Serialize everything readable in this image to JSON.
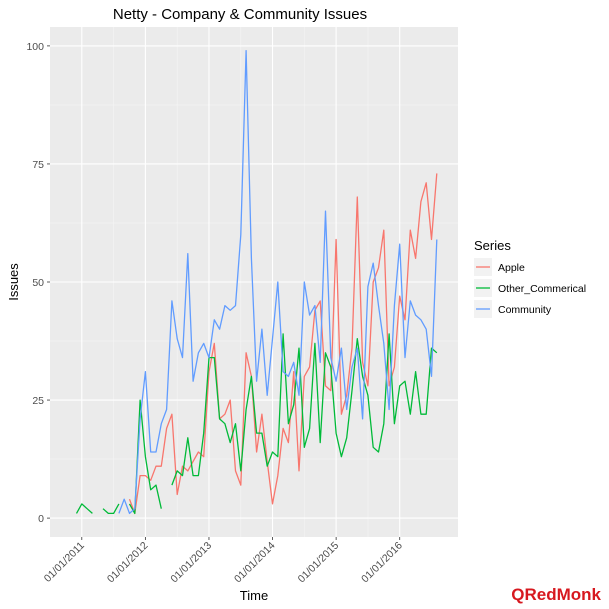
{
  "chart_data": {
    "type": "line",
    "title": "Netty - Company & Community Issues",
    "xlabel": "Time",
    "ylabel": "Issues",
    "ylim": [
      -4,
      104
    ],
    "y_ticks": [
      0,
      25,
      50,
      75,
      100
    ],
    "x_ticks": [
      "01/01/2011",
      "01/01/2012",
      "01/01/2013",
      "01/01/2014",
      "01/01/2015",
      "01/01/2016"
    ],
    "xlim": [
      "2010-07",
      "2016-12"
    ],
    "grid": true,
    "legend": {
      "title": "Series",
      "placement": "right"
    },
    "series": [
      {
        "name": "Apple",
        "color": "#f8766d",
        "values": [
          [
            "2011-10",
            4
          ],
          [
            "2011-11",
            1
          ],
          [
            "2011-12",
            9
          ],
          [
            "2012-01",
            9
          ],
          [
            "2012-02",
            8
          ],
          [
            "2012-03",
            11
          ],
          [
            "2012-04",
            11
          ],
          [
            "2012-05",
            19
          ],
          [
            "2012-06",
            22
          ],
          [
            "2012-07",
            5
          ],
          [
            "2012-08",
            11
          ],
          [
            "2012-09",
            10
          ],
          [
            "2012-10",
            12
          ],
          [
            "2012-11",
            14
          ],
          [
            "2012-12",
            13
          ],
          [
            "2013-01",
            31
          ],
          [
            "2013-02",
            37
          ],
          [
            "2013-03",
            21
          ],
          [
            "2013-04",
            22
          ],
          [
            "2013-05",
            25
          ],
          [
            "2013-06",
            10
          ],
          [
            "2013-07",
            7
          ],
          [
            "2013-08",
            35
          ],
          [
            "2013-09",
            30
          ],
          [
            "2013-10",
            14
          ],
          [
            "2013-11",
            22
          ],
          [
            "2013-12",
            12
          ],
          [
            "2014-01",
            3
          ],
          [
            "2014-02",
            9
          ],
          [
            "2014-03",
            19
          ],
          [
            "2014-04",
            16
          ],
          [
            "2014-05",
            31
          ],
          [
            "2014-06",
            10
          ],
          [
            "2014-07",
            30
          ],
          [
            "2014-08",
            32
          ],
          [
            "2014-09",
            44
          ],
          [
            "2014-10",
            46
          ],
          [
            "2014-11",
            28
          ],
          [
            "2014-12",
            27
          ],
          [
            "2015-01",
            59
          ],
          [
            "2015-02",
            22
          ],
          [
            "2015-03",
            26
          ],
          [
            "2015-04",
            36
          ],
          [
            "2015-05",
            68
          ],
          [
            "2015-06",
            33
          ],
          [
            "2015-07",
            28
          ],
          [
            "2015-08",
            50
          ],
          [
            "2015-09",
            53
          ],
          [
            "2015-10",
            61
          ],
          [
            "2015-11",
            28
          ],
          [
            "2015-12",
            32
          ],
          [
            "2016-01",
            47
          ],
          [
            "2016-02",
            42
          ],
          [
            "2016-03",
            61
          ],
          [
            "2016-04",
            55
          ],
          [
            "2016-05",
            67
          ],
          [
            "2016-06",
            71
          ],
          [
            "2016-07",
            59
          ],
          [
            "2016-08",
            73
          ]
        ]
      },
      {
        "name": "Other_Commerical",
        "color": "#00ba38",
        "values": [
          [
            "2010-12",
            1
          ],
          [
            "2011-01",
            3
          ],
          [
            "2011-02",
            2
          ],
          [
            "2011-03",
            1
          ],
          null,
          [
            "2011-05",
            2
          ],
          [
            "2011-06",
            1
          ],
          [
            "2011-07",
            1
          ],
          [
            "2011-08",
            3
          ],
          null,
          [
            "2011-10",
            3
          ],
          [
            "2011-11",
            1
          ],
          [
            "2011-12",
            25
          ],
          [
            "2012-01",
            13
          ],
          [
            "2012-02",
            6
          ],
          [
            "2012-03",
            7
          ],
          [
            "2012-04",
            2
          ],
          null,
          [
            "2012-06",
            7
          ],
          [
            "2012-07",
            10
          ],
          [
            "2012-08",
            9
          ],
          [
            "2012-09",
            17
          ],
          [
            "2012-10",
            9
          ],
          [
            "2012-11",
            9
          ],
          [
            "2012-12",
            18
          ],
          [
            "2013-01",
            34
          ],
          [
            "2013-02",
            34
          ],
          [
            "2013-03",
            21
          ],
          [
            "2013-04",
            20
          ],
          [
            "2013-05",
            16
          ],
          [
            "2013-06",
            20
          ],
          [
            "2013-07",
            10
          ],
          [
            "2013-08",
            23
          ],
          [
            "2013-09",
            30
          ],
          [
            "2013-10",
            18
          ],
          [
            "2013-11",
            18
          ],
          [
            "2013-12",
            11
          ],
          [
            "2014-01",
            14
          ],
          [
            "2014-02",
            13
          ],
          [
            "2014-03",
            39
          ],
          [
            "2014-04",
            20
          ],
          [
            "2014-05",
            24
          ],
          [
            "2014-06",
            36
          ],
          [
            "2014-07",
            15
          ],
          [
            "2014-08",
            19
          ],
          [
            "2014-09",
            37
          ],
          [
            "2014-10",
            16
          ],
          [
            "2014-11",
            35
          ],
          [
            "2014-12",
            32
          ],
          [
            "2015-01",
            18
          ],
          [
            "2015-02",
            13
          ],
          [
            "2015-03",
            17
          ],
          [
            "2015-04",
            27
          ],
          [
            "2015-05",
            38
          ],
          [
            "2015-06",
            30
          ],
          [
            "2015-07",
            26
          ],
          [
            "2015-08",
            15
          ],
          [
            "2015-09",
            14
          ],
          [
            "2015-10",
            20
          ],
          [
            "2015-11",
            39
          ],
          [
            "2015-12",
            20
          ],
          [
            "2016-01",
            28
          ],
          [
            "2016-02",
            29
          ],
          [
            "2016-03",
            22
          ],
          [
            "2016-04",
            31
          ],
          [
            "2016-05",
            22
          ],
          [
            "2016-06",
            22
          ],
          [
            "2016-07",
            36
          ],
          [
            "2016-08",
            35
          ]
        ]
      },
      {
        "name": "Community",
        "color": "#619cff",
        "values": [
          [
            "2011-08",
            1
          ],
          [
            "2011-09",
            4
          ],
          [
            "2011-10",
            1
          ],
          [
            "2011-11",
            2
          ],
          [
            "2011-12",
            21
          ],
          [
            "2012-01",
            31
          ],
          [
            "2012-02",
            14
          ],
          [
            "2012-03",
            14
          ],
          [
            "2012-04",
            20
          ],
          [
            "2012-05",
            23
          ],
          [
            "2012-06",
            46
          ],
          [
            "2012-07",
            38
          ],
          [
            "2012-08",
            34
          ],
          [
            "2012-09",
            56
          ],
          [
            "2012-10",
            29
          ],
          [
            "2012-11",
            35
          ],
          [
            "2012-12",
            37
          ],
          [
            "2013-01",
            34
          ],
          [
            "2013-02",
            42
          ],
          [
            "2013-03",
            40
          ],
          [
            "2013-04",
            45
          ],
          [
            "2013-05",
            44
          ],
          [
            "2013-06",
            45
          ],
          [
            "2013-07",
            60
          ],
          [
            "2013-08",
            99
          ],
          [
            "2013-09",
            55
          ],
          [
            "2013-10",
            29
          ],
          [
            "2013-11",
            40
          ],
          [
            "2013-12",
            26
          ],
          [
            "2014-01",
            38
          ],
          [
            "2014-02",
            50
          ],
          [
            "2014-03",
            31
          ],
          [
            "2014-04",
            30
          ],
          [
            "2014-05",
            33
          ],
          [
            "2014-06",
            26
          ],
          [
            "2014-07",
            50
          ],
          [
            "2014-08",
            43
          ],
          [
            "2014-09",
            45
          ],
          [
            "2014-10",
            33
          ],
          [
            "2014-11",
            65
          ],
          [
            "2014-12",
            34
          ],
          [
            "2015-01",
            29
          ],
          [
            "2015-02",
            36
          ],
          [
            "2015-03",
            23
          ],
          [
            "2015-04",
            32
          ],
          [
            "2015-05",
            36
          ],
          [
            "2015-06",
            21
          ],
          [
            "2015-07",
            49
          ],
          [
            "2015-08",
            54
          ],
          [
            "2015-09",
            45
          ],
          [
            "2015-10",
            37
          ],
          [
            "2015-11",
            23
          ],
          [
            "2015-12",
            45
          ],
          [
            "2016-01",
            58
          ],
          [
            "2016-02",
            34
          ],
          [
            "2016-03",
            46
          ],
          [
            "2016-04",
            43
          ],
          [
            "2016-05",
            42
          ],
          [
            "2016-06",
            40
          ],
          [
            "2016-07",
            30
          ],
          [
            "2016-08",
            59
          ]
        ]
      }
    ]
  },
  "branding": {
    "logo_text": "RedMonk",
    "logo_mark": "Q"
  }
}
